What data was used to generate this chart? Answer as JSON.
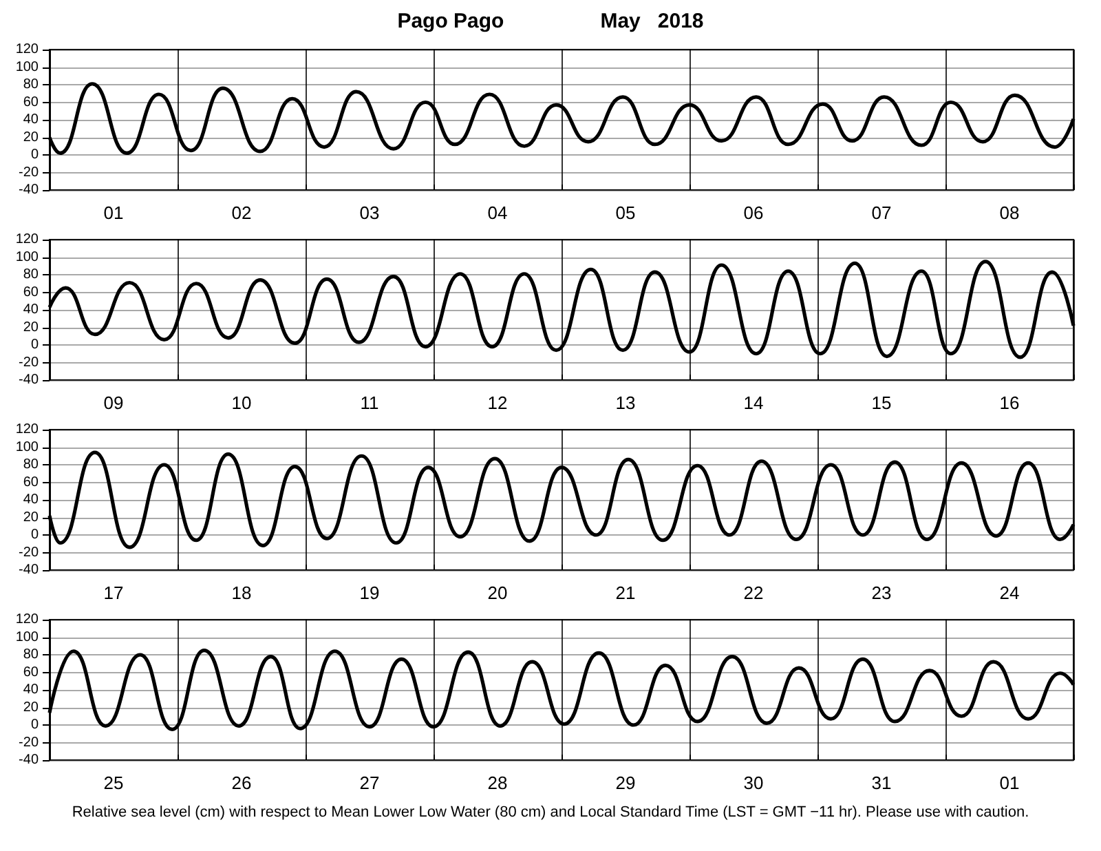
{
  "chart_data": [
    {
      "type": "line",
      "title": "Pago Pago",
      "subtitle": "May   2018",
      "grid": true,
      "marker": "none",
      "xlim": [
        "2018-05-01T00:00",
        "2018-05-09T00:00"
      ],
      "ylim": [
        -40,
        120
      ],
      "yticks": [
        -40,
        -20,
        0,
        20,
        40,
        60,
        80,
        100,
        120
      ],
      "xticks": [
        {
          "value": "2018-05-01T00:00",
          "label": null
        },
        {
          "value": "2018-05-01T12:00",
          "label": "01"
        },
        {
          "value": "2018-05-02T00:00",
          "label": null
        },
        {
          "value": "2018-05-02T12:00",
          "label": "02"
        },
        {
          "value": "2018-05-03T00:00",
          "label": null
        },
        {
          "value": "2018-05-03T12:00",
          "label": "03"
        },
        {
          "value": "2018-05-04T00:00",
          "label": null
        },
        {
          "value": "2018-05-04T12:00",
          "label": "04"
        },
        {
          "value": "2018-05-05T00:00",
          "label": null
        },
        {
          "value": "2018-05-05T12:00",
          "label": "05"
        },
        {
          "value": "2018-05-06T00:00",
          "label": null
        },
        {
          "value": "2018-05-06T12:00",
          "label": "06"
        },
        {
          "value": "2018-05-07T00:00",
          "label": null
        },
        {
          "value": "2018-05-07T12:00",
          "label": "07"
        },
        {
          "value": "2018-05-08T00:00",
          "label": null
        },
        {
          "value": "2018-05-08T12:00",
          "label": "08"
        },
        {
          "value": "2018-05-09T00:00",
          "label": null
        }
      ],
      "x": [
        "2018-05-01T00:00",
        "2018-05-01T02:00",
        "2018-05-01T08:00",
        "2018-05-01T14:30",
        "2018-05-01T20:30",
        "2018-05-02T02:30",
        "2018-05-02T08:30",
        "2018-05-02T15:30",
        "2018-05-02T21:30",
        "2018-05-03T03:30",
        "2018-05-03T09:30",
        "2018-05-03T16:30",
        "2018-05-03T22:30",
        "2018-05-04T04:00",
        "2018-05-04T10:30",
        "2018-05-04T17:00",
        "2018-05-04T23:00",
        "2018-05-05T05:00",
        "2018-05-05T11:30",
        "2018-05-05T17:30",
        "2018-05-06T00:00",
        "2018-05-06T06:00",
        "2018-05-06T12:30",
        "2018-05-06T18:30",
        "2018-05-07T01:00",
        "2018-05-07T06:30",
        "2018-05-07T12:30",
        "2018-05-07T19:30",
        "2018-05-08T01:00",
        "2018-05-08T07:00",
        "2018-05-08T13:00",
        "2018-05-08T20:30",
        "2018-05-09T00:00"
      ],
      "series": [
        {
          "color": "#000000",
          "values": [
            20,
            2,
            81,
            2,
            69,
            5,
            76,
            4,
            64,
            9,
            72,
            7,
            60,
            12,
            69,
            10,
            57,
            15,
            66,
            12,
            57,
            16,
            66,
            12,
            58,
            16,
            66,
            11,
            60,
            15,
            68,
            9,
            41
          ]
        }
      ]
    },
    {
      "type": "line",
      "grid": true,
      "marker": "none",
      "xlim": [
        "2018-05-09T00:00",
        "2018-05-17T00:00"
      ],
      "ylim": [
        -40,
        120
      ],
      "yticks": [
        -40,
        -20,
        0,
        20,
        40,
        60,
        80,
        100,
        120
      ],
      "xticks": [
        {
          "value": "2018-05-09T00:00",
          "label": null
        },
        {
          "value": "2018-05-09T12:00",
          "label": "09"
        },
        {
          "value": "2018-05-10T00:00",
          "label": null
        },
        {
          "value": "2018-05-10T12:00",
          "label": "10"
        },
        {
          "value": "2018-05-11T00:00",
          "label": null
        },
        {
          "value": "2018-05-11T12:00",
          "label": "11"
        },
        {
          "value": "2018-05-12T00:00",
          "label": null
        },
        {
          "value": "2018-05-12T12:00",
          "label": "12"
        },
        {
          "value": "2018-05-13T00:00",
          "label": null
        },
        {
          "value": "2018-05-13T12:00",
          "label": "13"
        },
        {
          "value": "2018-05-14T00:00",
          "label": null
        },
        {
          "value": "2018-05-14T12:00",
          "label": "14"
        },
        {
          "value": "2018-05-15T00:00",
          "label": null
        },
        {
          "value": "2018-05-15T12:00",
          "label": "15"
        },
        {
          "value": "2018-05-16T00:00",
          "label": null
        },
        {
          "value": "2018-05-16T12:00",
          "label": "16"
        },
        {
          "value": "2018-05-17T00:00",
          "label": null
        }
      ],
      "x": [
        "2018-05-09T00:00",
        "2018-05-09T03:00",
        "2018-05-09T08:30",
        "2018-05-09T15:00",
        "2018-05-09T21:30",
        "2018-05-10T03:30",
        "2018-05-10T09:30",
        "2018-05-10T15:30",
        "2018-05-10T22:00",
        "2018-05-11T04:00",
        "2018-05-11T10:00",
        "2018-05-11T16:30",
        "2018-05-11T22:30",
        "2018-05-12T05:00",
        "2018-05-12T11:00",
        "2018-05-12T17:00",
        "2018-05-12T23:00",
        "2018-05-13T05:30",
        "2018-05-13T11:30",
        "2018-05-13T17:30",
        "2018-05-14T00:00",
        "2018-05-14T06:00",
        "2018-05-14T12:30",
        "2018-05-14T18:30",
        "2018-05-15T00:30",
        "2018-05-15T07:00",
        "2018-05-15T13:00",
        "2018-05-15T19:30",
        "2018-05-16T01:00",
        "2018-05-16T07:30",
        "2018-05-16T14:00",
        "2018-05-16T20:00",
        "2018-05-17T00:00"
      ],
      "series": [
        {
          "color": "#000000",
          "values": [
            43,
            65,
            12,
            71,
            6,
            70,
            8,
            74,
            2,
            75,
            3,
            78,
            -2,
            81,
            -2,
            81,
            -6,
            86,
            -6,
            83,
            -8,
            91,
            -10,
            84,
            -10,
            93,
            -13,
            84,
            -10,
            95,
            -14,
            83,
            22
          ]
        }
      ]
    },
    {
      "type": "line",
      "grid": true,
      "marker": "none",
      "xlim": [
        "2018-05-17T00:00",
        "2018-05-25T00:00"
      ],
      "ylim": [
        -40,
        120
      ],
      "yticks": [
        -40,
        -20,
        0,
        20,
        40,
        60,
        80,
        100,
        120
      ],
      "xticks": [
        {
          "value": "2018-05-17T00:00",
          "label": null
        },
        {
          "value": "2018-05-17T12:00",
          "label": "17"
        },
        {
          "value": "2018-05-18T00:00",
          "label": null
        },
        {
          "value": "2018-05-18T12:00",
          "label": "18"
        },
        {
          "value": "2018-05-19T00:00",
          "label": null
        },
        {
          "value": "2018-05-19T12:00",
          "label": "19"
        },
        {
          "value": "2018-05-20T00:00",
          "label": null
        },
        {
          "value": "2018-05-20T12:00",
          "label": "20"
        },
        {
          "value": "2018-05-21T00:00",
          "label": null
        },
        {
          "value": "2018-05-21T12:00",
          "label": "21"
        },
        {
          "value": "2018-05-22T00:00",
          "label": null
        },
        {
          "value": "2018-05-22T12:00",
          "label": "22"
        },
        {
          "value": "2018-05-23T00:00",
          "label": null
        },
        {
          "value": "2018-05-23T12:00",
          "label": "23"
        },
        {
          "value": "2018-05-24T00:00",
          "label": null
        },
        {
          "value": "2018-05-24T12:00",
          "label": "24"
        },
        {
          "value": "2018-05-25T00:00",
          "label": null
        }
      ],
      "x": [
        "2018-05-17T00:00",
        "2018-05-17T02:00",
        "2018-05-17T08:30",
        "2018-05-17T15:00",
        "2018-05-17T21:30",
        "2018-05-18T03:30",
        "2018-05-18T09:30",
        "2018-05-18T16:00",
        "2018-05-18T22:00",
        "2018-05-19T04:00",
        "2018-05-19T10:30",
        "2018-05-19T17:00",
        "2018-05-19T23:00",
        "2018-05-20T05:00",
        "2018-05-20T11:30",
        "2018-05-20T18:00",
        "2018-05-21T00:00",
        "2018-05-21T06:30",
        "2018-05-21T12:30",
        "2018-05-21T19:00",
        "2018-05-22T01:30",
        "2018-05-22T07:30",
        "2018-05-22T13:30",
        "2018-05-22T20:00",
        "2018-05-23T02:30",
        "2018-05-23T08:30",
        "2018-05-23T14:30",
        "2018-05-23T20:30",
        "2018-05-24T03:00",
        "2018-05-24T09:30",
        "2018-05-24T15:30",
        "2018-05-24T21:30",
        "2018-05-25T00:00"
      ],
      "series": [
        {
          "color": "#000000",
          "values": [
            22,
            -9,
            94,
            -14,
            80,
            -6,
            92,
            -12,
            78,
            -4,
            90,
            -9,
            77,
            -2,
            87,
            -7,
            77,
            0,
            86,
            -6,
            79,
            0,
            84,
            -5,
            80,
            0,
            83,
            -5,
            82,
            -1,
            82,
            -5,
            12
          ]
        }
      ]
    },
    {
      "type": "line",
      "grid": true,
      "marker": "none",
      "annotations": [
        "Relative sea level (cm) with respect to Mean Lower Low Water (80 cm) and Local Standard Time (LST = GMT −11 hr). Please use with caution."
      ],
      "xlim": [
        "2018-05-25T00:00",
        "2018-06-02T00:00"
      ],
      "ylim": [
        -40,
        120
      ],
      "yticks": [
        -40,
        -20,
        0,
        20,
        40,
        60,
        80,
        100,
        120
      ],
      "xticks": [
        {
          "value": "2018-05-25T00:00",
          "label": null
        },
        {
          "value": "2018-05-25T12:00",
          "label": "25"
        },
        {
          "value": "2018-05-26T00:00",
          "label": null
        },
        {
          "value": "2018-05-26T12:00",
          "label": "26"
        },
        {
          "value": "2018-05-27T00:00",
          "label": null
        },
        {
          "value": "2018-05-27T12:00",
          "label": "27"
        },
        {
          "value": "2018-05-28T00:00",
          "label": null
        },
        {
          "value": "2018-05-28T12:00",
          "label": "28"
        },
        {
          "value": "2018-05-29T00:00",
          "label": null
        },
        {
          "value": "2018-05-29T12:00",
          "label": "29"
        },
        {
          "value": "2018-05-30T00:00",
          "label": null
        },
        {
          "value": "2018-05-30T12:00",
          "label": "30"
        },
        {
          "value": "2018-05-31T00:00",
          "label": null
        },
        {
          "value": "2018-05-31T12:00",
          "label": "31"
        },
        {
          "value": "2018-06-01T00:00",
          "label": null
        },
        {
          "value": "2018-06-01T12:00",
          "label": "01"
        },
        {
          "value": "2018-06-02T00:00",
          "label": null
        }
      ],
      "x": [
        "2018-05-25T00:00",
        "2018-05-25T04:30",
        "2018-05-25T10:30",
        "2018-05-25T17:00",
        "2018-05-25T23:00",
        "2018-05-26T05:00",
        "2018-05-26T11:30",
        "2018-05-26T17:30",
        "2018-05-26T23:00",
        "2018-05-27T05:30",
        "2018-05-27T12:00",
        "2018-05-27T18:00",
        "2018-05-28T00:00",
        "2018-05-28T06:30",
        "2018-05-28T12:30",
        "2018-05-28T18:30",
        "2018-05-29T00:30",
        "2018-05-29T07:00",
        "2018-05-29T13:30",
        "2018-05-29T19:30",
        "2018-05-30T01:30",
        "2018-05-30T08:00",
        "2018-05-30T14:30",
        "2018-05-30T20:30",
        "2018-05-31T02:30",
        "2018-05-31T08:30",
        "2018-05-31T14:30",
        "2018-05-31T21:00",
        "2018-06-01T03:00",
        "2018-06-01T09:00",
        "2018-06-01T15:30",
        "2018-06-01T21:30",
        "2018-06-02T00:00"
      ],
      "series": [
        {
          "color": "#000000",
          "values": [
            14,
            84,
            -1,
            80,
            -5,
            85,
            -1,
            78,
            -4,
            84,
            -2,
            75,
            -2,
            83,
            -1,
            72,
            1,
            82,
            0,
            68,
            4,
            78,
            2,
            65,
            7,
            75,
            4,
            62,
            10,
            72,
            7,
            59,
            46
          ]
        }
      ]
    }
  ]
}
